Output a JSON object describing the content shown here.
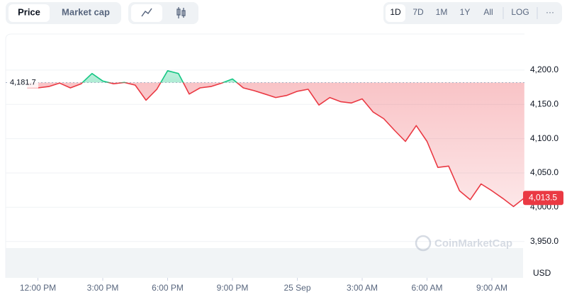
{
  "controls": {
    "tabs": [
      "Price",
      "Market cap"
    ],
    "ranges": [
      "1D",
      "7D",
      "1M",
      "1Y",
      "All"
    ],
    "log": "LOG",
    "more": "···"
  },
  "chart_data": {
    "type": "line",
    "watermark": "CoinMarketCap",
    "unit": "USD",
    "colors": {
      "up": "#16c784",
      "down": "#ea3943"
    },
    "reference": {
      "value": 4181.7,
      "label": "4,181.7"
    },
    "last_price": {
      "value": 4013.5,
      "label": "4,013.5"
    },
    "x": [
      11.5,
      12,
      12.5,
      13,
      13.5,
      14,
      14.5,
      15,
      15.5,
      16,
      16.5,
      17,
      17.5,
      18,
      18.5,
      19,
      19.5,
      20,
      20.5,
      21,
      21.5,
      22,
      22.5,
      23,
      23.5,
      24,
      24.5,
      25,
      25.5,
      26,
      26.5,
      27,
      27.5,
      28,
      28.5,
      29,
      29.5,
      30,
      30.5,
      31,
      31.5,
      32,
      32.5,
      33,
      33.5,
      34,
      34.5
    ],
    "values": [
      4174,
      4174,
      4176,
      4181,
      4174,
      4180,
      4195,
      4184,
      4180,
      4182,
      4178,
      4156,
      4172,
      4199,
      4195,
      4165,
      4174,
      4176,
      4181,
      4187,
      4174,
      4170,
      4165,
      4160,
      4163,
      4169,
      4172,
      4149,
      4160,
      4154,
      4152,
      4158,
      4139,
      4129,
      4112,
      4096,
      4119,
      4096,
      4058,
      4060,
      4024,
      4011,
      4034,
      4024,
      4013,
      4001,
      4013.5
    ],
    "xlim": [
      11,
      35
    ],
    "xticks": [
      {
        "value": 12,
        "label": "12:00 PM"
      },
      {
        "value": 15,
        "label": "3:00 PM"
      },
      {
        "value": 18,
        "label": "6:00 PM"
      },
      {
        "value": 21,
        "label": "9:00 PM"
      },
      {
        "value": 24,
        "label": "25 Sep"
      },
      {
        "value": 27,
        "label": "3:00 AM"
      },
      {
        "value": 30,
        "label": "6:00 AM"
      },
      {
        "value": 33,
        "label": "9:00 AM"
      }
    ],
    "ylim": [
      3897,
      4250.5
    ],
    "yticks": [
      {
        "value": 3950,
        "label": "3,950.0"
      },
      {
        "value": 4000,
        "label": "4,000.0"
      },
      {
        "value": 4050,
        "label": "4,050.0"
      },
      {
        "value": 4100,
        "label": "4,100.0"
      },
      {
        "value": 4150,
        "label": "4,150.0"
      },
      {
        "value": 4200,
        "label": "4,200.0"
      }
    ],
    "grid": true
  }
}
